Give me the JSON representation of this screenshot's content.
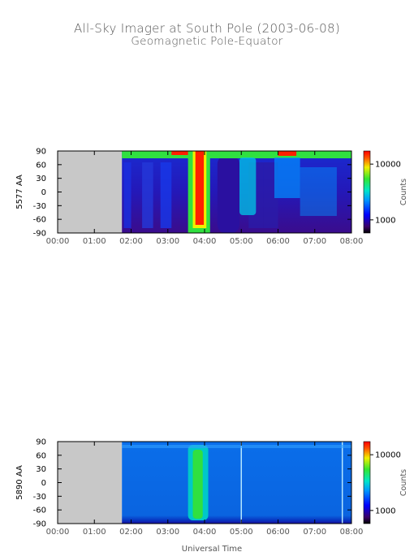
{
  "title": "All-Sky Imager at South Pole (2003-06-08)",
  "subtitle": "Geomagnetic Pole-Equator",
  "xlabel": "Universal Time",
  "colors": {
    "no_data": "#c8c8c8",
    "axis": "#000000",
    "text": "#555555"
  },
  "chart_data": [
    {
      "type": "heatmap",
      "ylabel": "5577 AA",
      "x_ticks": [
        "00:00",
        "01:00",
        "02:00",
        "03:00",
        "04:00",
        "05:00",
        "06:00",
        "07:00",
        "08:00"
      ],
      "y_ticks": [
        "90",
        "60",
        "30",
        "0",
        "-30",
        "-60",
        "-90"
      ],
      "xlim_hours": [
        0,
        8
      ],
      "ylim": [
        -90,
        90
      ],
      "data_start_hour": 1.75,
      "colorbar": {
        "label": "Counts",
        "scale": "log",
        "ticks": [
          "10000",
          "1000"
        ]
      }
    },
    {
      "type": "heatmap",
      "ylabel": "5890 AA",
      "x_ticks": [
        "00:00",
        "01:00",
        "02:00",
        "03:00",
        "04:00",
        "05:00",
        "06:00",
        "07:00",
        "08:00"
      ],
      "y_ticks": [
        "90",
        "60",
        "30",
        "0",
        "-30",
        "-60",
        "-90"
      ],
      "xlim_hours": [
        0,
        8
      ],
      "ylim": [
        -90,
        90
      ],
      "data_start_hour": 1.75,
      "colorbar": {
        "label": "Counts",
        "scale": "log",
        "ticks": [
          "10000",
          "1000"
        ]
      }
    }
  ]
}
